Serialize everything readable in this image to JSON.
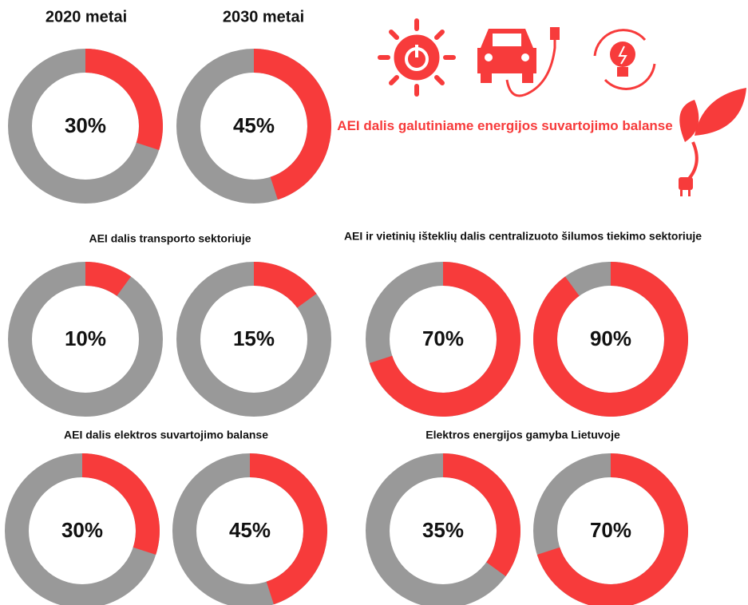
{
  "columns": [
    "2020 metai",
    "2030 metai"
  ],
  "chart_data": [
    {
      "type": "donut",
      "title": "AEI dalis galutiniame energijos suvartojimo balanse",
      "values": [
        30,
        45
      ],
      "value_labels": [
        "30%",
        "45%"
      ],
      "color": "#f73b3b",
      "track_color": "#999999"
    },
    {
      "type": "donut",
      "title": "AEI dalis transporto sektoriuje",
      "values": [
        10,
        15
      ],
      "value_labels": [
        "10%",
        "15%"
      ],
      "color": "#f73b3b",
      "track_color": "#999999"
    },
    {
      "type": "donut",
      "title": "AEI ir vietinių išteklių dalis centralizuoto šilumos tiekimo sektoriuje",
      "values": [
        70,
        90
      ],
      "value_labels": [
        "70%",
        "90%"
      ],
      "color": "#f73b3b",
      "track_color": "#999999"
    },
    {
      "type": "donut",
      "title": "AEI dalis elektros suvartojimo balanse",
      "values": [
        30,
        45
      ],
      "value_labels": [
        "30%",
        "45%"
      ],
      "color": "#f73b3b",
      "track_color": "#999999"
    },
    {
      "type": "donut",
      "title": "Elektros energijos gamyba Lietuvoje",
      "values": [
        35,
        70
      ],
      "value_labels": [
        "35%",
        "70%"
      ],
      "color": "#f73b3b",
      "track_color": "#999999"
    }
  ]
}
